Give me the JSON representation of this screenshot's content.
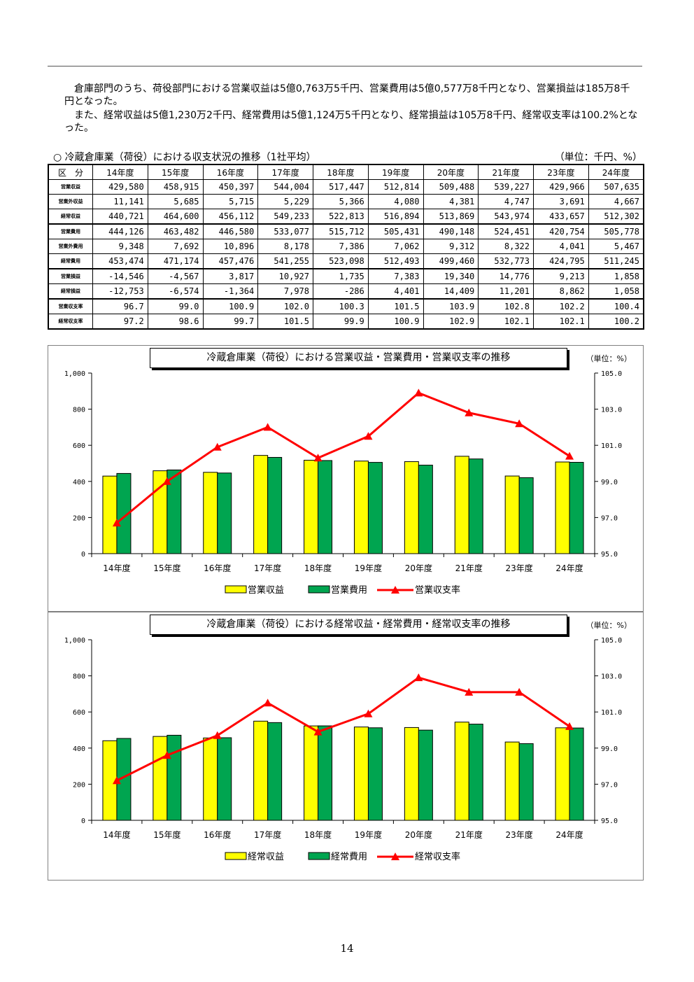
{
  "page_number": "14",
  "intro": {
    "p1": "倉庫部門のうち、荷役部門における営業収益は5億0,763万5千円、営業費用は5億0,577万8千円となり、営業損益は185万8千円となった。",
    "p2": "また、経常収益は5億1,230万2千円、経常費用は5億1,124万5千円となり、経常損益は105万8千円、経常収支率は100.2%となった。"
  },
  "table": {
    "caption": "○ 冷蔵倉庫業（荷役）における収支状況の推移（1社平均）",
    "unit": "（単位：千円、%）",
    "corner": "区　分",
    "years": [
      "14年度",
      "15年度",
      "16年度",
      "17年度",
      "18年度",
      "19年度",
      "20年度",
      "21年度",
      "23年度",
      "24年度"
    ],
    "rows": [
      {
        "label": "営業収益",
        "values": [
          "429,580",
          "458,915",
          "450,397",
          "544,004",
          "517,447",
          "512,814",
          "509,488",
          "539,227",
          "429,966",
          "507,635"
        ]
      },
      {
        "label": "営業外収益",
        "values": [
          "11,141",
          "5,685",
          "5,715",
          "5,229",
          "5,366",
          "4,080",
          "4,381",
          "4,747",
          "3,691",
          "4,667"
        ]
      },
      {
        "label": "経常収益",
        "values": [
          "440,721",
          "464,600",
          "456,112",
          "549,233",
          "522,813",
          "516,894",
          "513,869",
          "543,974",
          "433,657",
          "512,302"
        ]
      },
      {
        "label": "営業費用",
        "values": [
          "444,126",
          "463,482",
          "446,580",
          "533,077",
          "515,712",
          "505,431",
          "490,148",
          "524,451",
          "420,754",
          "505,778"
        ]
      },
      {
        "label": "営業外費用",
        "values": [
          "9,348",
          "7,692",
          "10,896",
          "8,178",
          "7,386",
          "7,062",
          "9,312",
          "8,322",
          "4,041",
          "5,467"
        ]
      },
      {
        "label": "経常費用",
        "values": [
          "453,474",
          "471,174",
          "457,476",
          "541,255",
          "523,098",
          "512,493",
          "499,460",
          "532,773",
          "424,795",
          "511,245"
        ]
      },
      {
        "label": "営業損益",
        "values": [
          "-14,546",
          "-4,567",
          "3,817",
          "10,927",
          "1,735",
          "7,383",
          "19,340",
          "14,776",
          "9,213",
          "1,858"
        ]
      },
      {
        "label": "経常損益",
        "values": [
          "-12,753",
          "-6,574",
          "-1,364",
          "7,978",
          "-286",
          "4,401",
          "14,409",
          "11,201",
          "8,862",
          "1,058"
        ]
      },
      {
        "label": "営業収支率",
        "values": [
          "96.7",
          "99.0",
          "100.9",
          "102.0",
          "100.3",
          "101.5",
          "103.9",
          "102.8",
          "102.2",
          "100.4"
        ]
      },
      {
        "label": "経常収支率",
        "values": [
          "97.2",
          "98.6",
          "99.7",
          "101.5",
          "99.9",
          "100.9",
          "102.9",
          "102.1",
          "102.1",
          "100.2"
        ]
      }
    ]
  },
  "colors": {
    "bar1": "#ffff00",
    "bar2": "#00a550",
    "line": "#ff0000"
  },
  "chart_data": [
    {
      "type": "bar",
      "title": "冷蔵倉庫業（荷役）における営業収益・営業費用・営業収支率の推移",
      "unit": "（単位：%）",
      "categories": [
        "14年度",
        "15年度",
        "16年度",
        "17年度",
        "18年度",
        "19年度",
        "20年度",
        "21年度",
        "23年度",
        "24年度"
      ],
      "ylim": [
        0,
        1000
      ],
      "y_ticks": [
        "0",
        "200",
        "400",
        "600",
        "800",
        "1,000"
      ],
      "y2lim": [
        95.0,
        105.0
      ],
      "y2_ticks": [
        "95.0",
        "97.0",
        "99.0",
        "101.0",
        "103.0",
        "105.0"
      ],
      "legend_position": "bottom",
      "series": [
        {
          "name": "営業収益",
          "kind": "bar",
          "values": [
            429.58,
            458.915,
            450.397,
            544.004,
            517.447,
            512.814,
            509.488,
            539.227,
            429.966,
            507.635
          ]
        },
        {
          "name": "営業費用",
          "kind": "bar",
          "values": [
            444.126,
            463.482,
            446.58,
            533.077,
            515.712,
            505.431,
            490.148,
            524.451,
            420.754,
            505.778
          ]
        },
        {
          "name": "営業収支率",
          "kind": "line",
          "axis": "right",
          "values": [
            96.7,
            99.0,
            100.9,
            102.0,
            100.3,
            101.5,
            103.9,
            102.8,
            102.2,
            100.4
          ]
        }
      ]
    },
    {
      "type": "bar",
      "title": "冷蔵倉庫業（荷役）における経常収益・経常費用・経常収支率の推移",
      "unit": "（単位：%）",
      "categories": [
        "14年度",
        "15年度",
        "16年度",
        "17年度",
        "18年度",
        "19年度",
        "20年度",
        "21年度",
        "23年度",
        "24年度"
      ],
      "ylim": [
        0,
        1000
      ],
      "y_ticks": [
        "0",
        "200",
        "400",
        "600",
        "800",
        "1,000"
      ],
      "y2lim": [
        95.0,
        105.0
      ],
      "y2_ticks": [
        "95.0",
        "97.0",
        "99.0",
        "101.0",
        "103.0",
        "105.0"
      ],
      "legend_position": "bottom",
      "series": [
        {
          "name": "経常収益",
          "kind": "bar",
          "values": [
            440.721,
            464.6,
            456.112,
            549.233,
            522.813,
            516.894,
            513.869,
            543.974,
            433.657,
            512.302
          ]
        },
        {
          "name": "経常費用",
          "kind": "bar",
          "values": [
            453.474,
            471.174,
            457.476,
            541.255,
            523.098,
            512.493,
            499.46,
            532.773,
            424.795,
            511.245
          ]
        },
        {
          "name": "経常収支率",
          "kind": "line",
          "axis": "right",
          "values": [
            97.2,
            98.6,
            99.7,
            101.5,
            99.9,
            100.9,
            102.9,
            102.1,
            102.1,
            100.2
          ]
        }
      ]
    }
  ]
}
